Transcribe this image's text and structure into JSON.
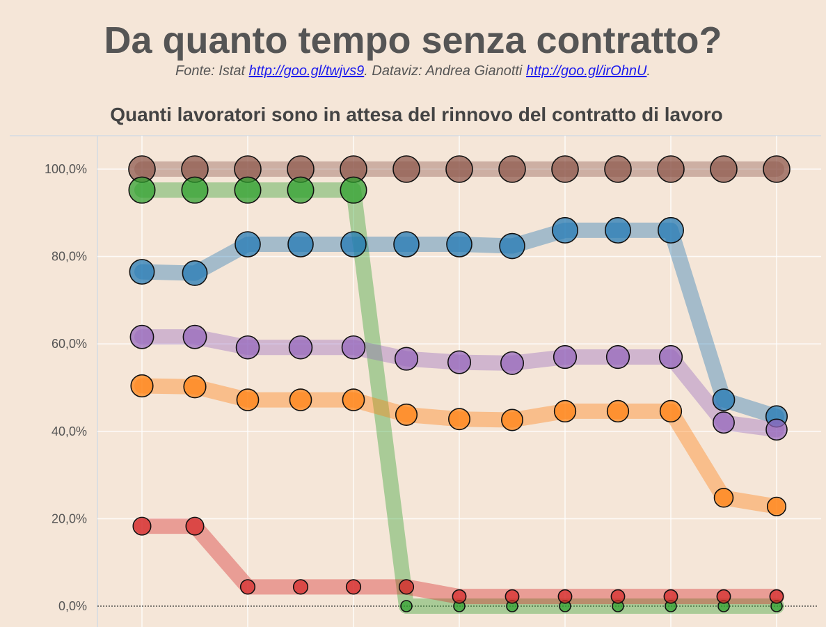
{
  "header": {
    "title": "Da quanto tempo senza contratto?",
    "source_prefix": "Fonte: Istat ",
    "source_link": "http://goo.gl/twjvs9",
    "dataviz_prefix": ". Dataviz: Andrea Gianotti ",
    "dataviz_link": "http://goo.gl/irOhnU",
    "suffix": "."
  },
  "chart_data": {
    "type": "line",
    "title": "Quanti lavoratori sono in attesa del rinnovo del contratto di lavoro",
    "xlabel": "",
    "ylabel": "",
    "ylim": [
      0,
      100
    ],
    "yticks": [
      "0,0%",
      "20,0%",
      "40,0%",
      "60,0%",
      "80,0%",
      "100,0%"
    ],
    "x": [
      1,
      2,
      3,
      4,
      5,
      6,
      7,
      8,
      9,
      10,
      11,
      12,
      13
    ],
    "grid": true,
    "series": [
      {
        "color": "#8c564b",
        "values": [
          100,
          100,
          100,
          100,
          100,
          100,
          100,
          100,
          100,
          100,
          100,
          100,
          100
        ]
      },
      {
        "color": "#2ca02c",
        "values": [
          95.2,
          95.2,
          95.2,
          95.2,
          95.2,
          0,
          0,
          0,
          0,
          0,
          0,
          0,
          0
        ]
      },
      {
        "color": "#1f77b4",
        "values": [
          76.5,
          76.2,
          82.8,
          82.8,
          82.8,
          82.8,
          82.8,
          82.4,
          86.0,
          86.0,
          86.0,
          47.2,
          43.4
        ]
      },
      {
        "color": "#9467bd",
        "values": [
          61.6,
          61.6,
          59.2,
          59.2,
          59.2,
          56.6,
          55.8,
          55.6,
          57.0,
          57.0,
          57.0,
          42.0,
          40.4
        ]
      },
      {
        "color": "#ff7f0e",
        "values": [
          50.4,
          50.2,
          47.2,
          47.2,
          47.2,
          43.8,
          42.8,
          42.6,
          44.6,
          44.6,
          44.6,
          24.8,
          22.8
        ]
      },
      {
        "color": "#d62728",
        "values": [
          18.3,
          18.3,
          4.4,
          4.4,
          4.4,
          4.4,
          2.2,
          2.2,
          2.2,
          2.2,
          2.2,
          2.2,
          2.2
        ]
      }
    ]
  }
}
